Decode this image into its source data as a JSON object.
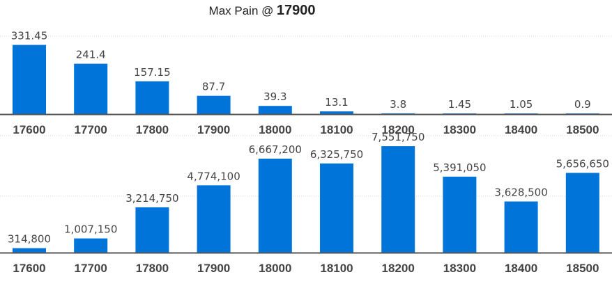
{
  "header": {
    "title_text": "Max Pain @",
    "title_value": "17900"
  },
  "colors": {
    "bar": "#0074d9",
    "axis": "#555555",
    "grid": "#d6d6d6"
  },
  "chart_data": [
    {
      "type": "bar",
      "title": "",
      "categories": [
        "17600",
        "17700",
        "17800",
        "17900",
        "18000",
        "18100",
        "18200",
        "18300",
        "18400",
        "18500"
      ],
      "values": [
        331.45,
        241.4,
        157.15,
        87.7,
        39.3,
        13.1,
        3.8,
        1.45,
        1.05,
        0.9
      ],
      "labels": [
        "331.45",
        "241.4",
        "157.15",
        "87.7",
        "39.3",
        "13.1",
        "3.8",
        "1.45",
        "1.05",
        "0.9"
      ],
      "xlabel": "",
      "ylabel": "",
      "ylim": [
        0,
        500
      ],
      "grid": true
    },
    {
      "type": "bar",
      "title": "",
      "categories": [
        "17600",
        "17700",
        "17800",
        "17900",
        "18000",
        "18100",
        "18200",
        "18300",
        "18400",
        "18500"
      ],
      "values": [
        314800,
        1007150,
        3214750,
        4774100,
        6667200,
        6325750,
        7551750,
        5391050,
        3628500,
        5656650
      ],
      "labels": [
        "314,800",
        "1,007,150",
        "3,214,750",
        "4,774,100",
        "6,667,200",
        "6,325,750",
        "7,551,750",
        "5,391,050",
        "3,628,500",
        "5,656,650"
      ],
      "xlabel": "",
      "ylabel": "",
      "ylim": [
        0,
        12000000
      ],
      "grid": true
    }
  ]
}
